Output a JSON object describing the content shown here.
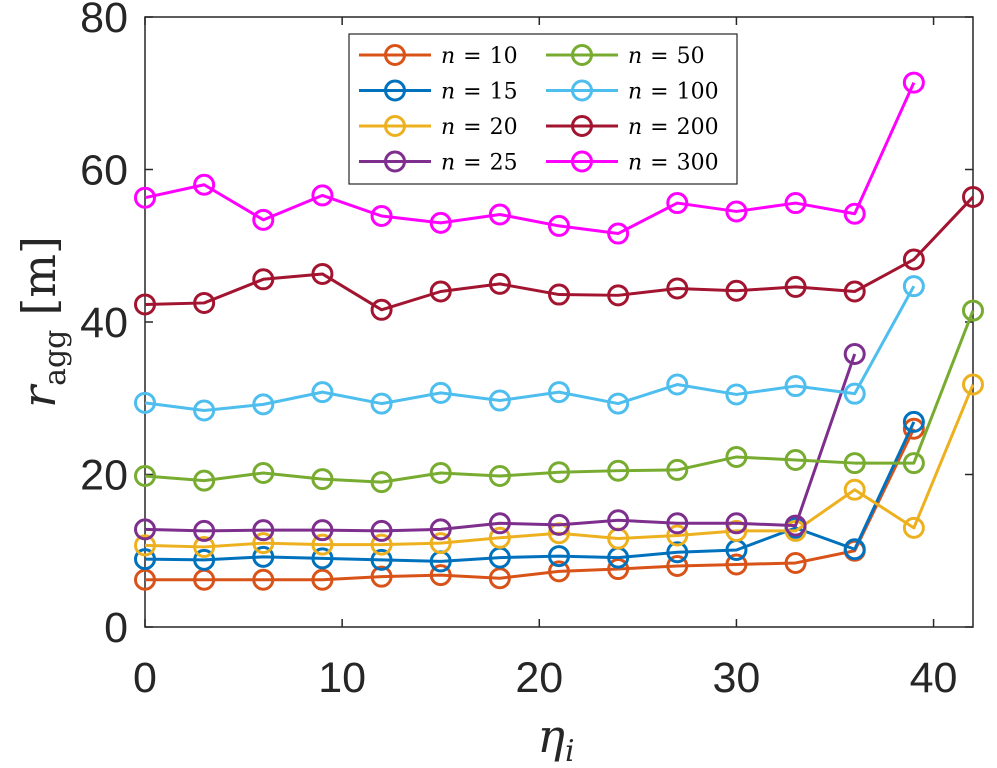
{
  "chart_data": {
    "type": "line",
    "title": "",
    "xlabel": "η_i",
    "xlabel_main": "η",
    "xlabel_sub": "i",
    "ylabel": "r_agg [m]",
    "ylabel_main": "r",
    "ylabel_sub": "agg",
    "ylabel_unit": "[m]",
    "xlim": [
      0,
      42
    ],
    "ylim": [
      0,
      80
    ],
    "xticks": [
      0,
      10,
      20,
      30,
      40
    ],
    "yticks": [
      0,
      20,
      40,
      60,
      80
    ],
    "xtick_labels": [
      "0",
      "10",
      "20",
      "30",
      "40"
    ],
    "ytick_labels": [
      "0",
      "20",
      "40",
      "60",
      "80"
    ],
    "grid": false,
    "legend_position": "top-center",
    "series": [
      {
        "name": "n = 10",
        "color": "#D95319",
        "x": [
          0,
          3,
          6,
          9,
          12,
          15,
          18,
          21,
          24,
          27,
          30,
          33,
          36,
          39
        ],
        "y": [
          6.2,
          6.2,
          6.2,
          6.2,
          6.6,
          6.8,
          6.4,
          7.3,
          7.6,
          8.0,
          8.2,
          8.4,
          10.0,
          26.0
        ]
      },
      {
        "name": "n = 15",
        "color": "#0072BD",
        "x": [
          0,
          3,
          6,
          9,
          12,
          15,
          18,
          21,
          24,
          27,
          30,
          33,
          36,
          39
        ],
        "y": [
          8.9,
          8.8,
          9.2,
          9.0,
          8.8,
          8.6,
          9.1,
          9.3,
          9.1,
          9.8,
          10.1,
          13.0,
          10.2,
          26.9
        ]
      },
      {
        "name": "n = 20",
        "color": "#EDB120",
        "x": [
          0,
          3,
          6,
          9,
          12,
          15,
          18,
          21,
          24,
          27,
          30,
          33,
          36,
          39,
          42
        ],
        "y": [
          10.7,
          10.5,
          11.0,
          10.8,
          10.8,
          11.0,
          11.7,
          12.3,
          11.6,
          12.0,
          12.6,
          12.6,
          18.0,
          13.0,
          31.8
        ]
      },
      {
        "name": "n = 25",
        "color": "#7E2F8E",
        "x": [
          0,
          3,
          6,
          9,
          12,
          15,
          18,
          21,
          24,
          27,
          30,
          33,
          36
        ],
        "y": [
          12.8,
          12.6,
          12.7,
          12.7,
          12.6,
          12.8,
          13.6,
          13.4,
          14.0,
          13.6,
          13.6,
          13.3,
          35.8
        ]
      },
      {
        "name": "n = 50",
        "color": "#77AC30",
        "x": [
          0,
          3,
          6,
          9,
          12,
          15,
          18,
          21,
          24,
          27,
          30,
          33,
          36,
          39,
          42
        ],
        "y": [
          19.8,
          19.2,
          20.2,
          19.4,
          19.0,
          20.2,
          19.8,
          20.3,
          20.5,
          20.6,
          22.3,
          21.9,
          21.5,
          21.5,
          41.5
        ]
      },
      {
        "name": "n = 100",
        "color": "#4DBEEE",
        "x": [
          0,
          3,
          6,
          9,
          12,
          15,
          18,
          21,
          24,
          27,
          30,
          33,
          36,
          39
        ],
        "y": [
          29.4,
          28.4,
          29.2,
          30.8,
          29.3,
          30.7,
          29.7,
          30.8,
          29.3,
          31.8,
          30.5,
          31.6,
          30.6,
          44.7
        ]
      },
      {
        "name": "n = 200",
        "color": "#A2142F",
        "x": [
          0,
          3,
          6,
          9,
          12,
          15,
          18,
          21,
          24,
          27,
          30,
          33,
          36,
          39,
          42
        ],
        "y": [
          42.3,
          42.5,
          45.6,
          46.3,
          41.6,
          44.0,
          45.0,
          43.6,
          43.5,
          44.4,
          44.1,
          44.6,
          44.0,
          48.2,
          56.4
        ]
      },
      {
        "name": "n = 300",
        "color": "#FF00FF",
        "x": [
          0,
          3,
          6,
          9,
          12,
          15,
          18,
          21,
          24,
          27,
          30,
          33,
          36,
          39
        ],
        "y": [
          56.3,
          58.0,
          53.4,
          56.6,
          53.9,
          53.0,
          54.1,
          52.6,
          51.6,
          55.6,
          54.5,
          55.6,
          54.2,
          71.4
        ]
      }
    ],
    "legend": {
      "columns": 2,
      "entries": [
        {
          "var": "n",
          "eq": "=",
          "val": "10"
        },
        {
          "var": "n",
          "eq": "=",
          "val": "50"
        },
        {
          "var": "n",
          "eq": "=",
          "val": "15"
        },
        {
          "var": "n",
          "eq": "=",
          "val": "100"
        },
        {
          "var": "n",
          "eq": "=",
          "val": "20"
        },
        {
          "var": "n",
          "eq": "=",
          "val": "200"
        },
        {
          "var": "n",
          "eq": "=",
          "val": "25"
        },
        {
          "var": "n",
          "eq": "=",
          "val": "300"
        }
      ]
    }
  }
}
